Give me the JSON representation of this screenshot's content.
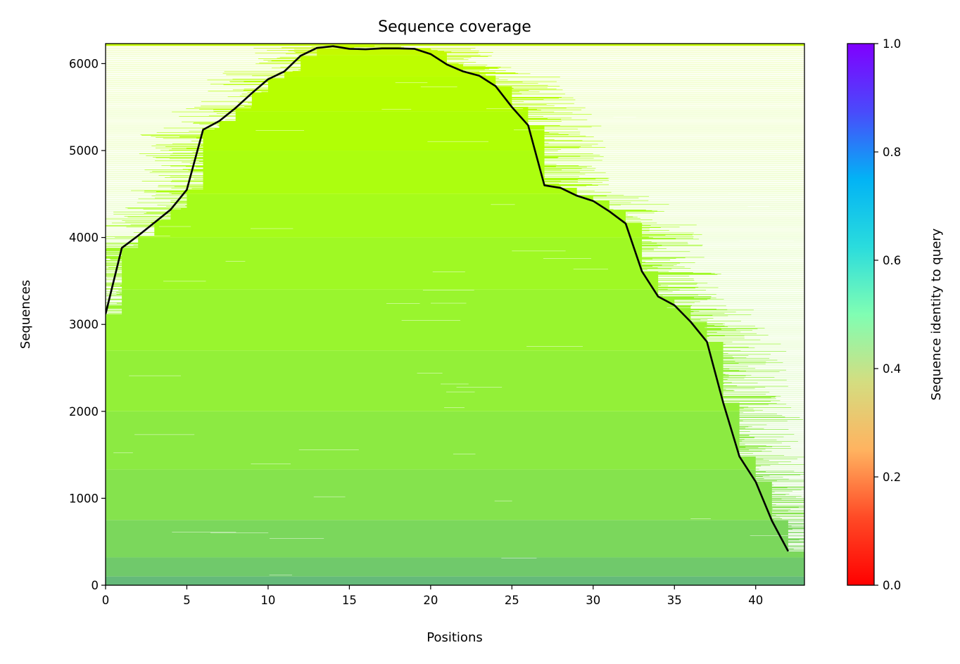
{
  "chart_data": {
    "type": "heatmap",
    "title": "Sequence coverage",
    "xlabel": "Positions",
    "ylabel": "Sequences",
    "xlim": [
      0,
      43
    ],
    "ylim": [
      0,
      6230
    ],
    "xticks": [
      0,
      5,
      10,
      15,
      20,
      25,
      30,
      35,
      40
    ],
    "yticks": [
      0,
      1000,
      2000,
      3000,
      4000,
      5000,
      6000
    ],
    "colorbar": {
      "label": "Sequence identity to query",
      "colormap": "rainbow_r",
      "range": [
        0,
        1
      ],
      "ticks": [
        "0.0",
        "0.2",
        "0.4",
        "0.6",
        "0.8",
        "1.0"
      ]
    },
    "coverage_line": {
      "color": "#000000",
      "x": [
        0,
        1,
        2,
        3,
        4,
        5,
        6,
        7,
        8,
        9,
        10,
        11,
        12,
        13,
        14,
        15,
        16,
        17,
        18,
        19,
        20,
        21,
        22,
        23,
        24,
        25,
        26,
        27,
        28,
        29,
        30,
        31,
        32,
        33,
        34,
        35,
        36,
        37,
        38,
        39,
        40,
        41,
        42
      ],
      "y": [
        3120,
        3880,
        4020,
        4170,
        4320,
        4550,
        5240,
        5340,
        5490,
        5660,
        5820,
        5910,
        6090,
        6180,
        6200,
        6170,
        6165,
        6175,
        6175,
        6170,
        6110,
        5990,
        5910,
        5860,
        5740,
        5500,
        5290,
        4600,
        4570,
        4480,
        4420,
        4300,
        4160,
        3610,
        3320,
        3220,
        3030,
        2800,
        2100,
        1480,
        1190,
        740,
        390
      ]
    },
    "identity_bands": [
      {
        "y0": 0,
        "y1": 100,
        "identity": 0.26
      },
      {
        "y0": 100,
        "y1": 320,
        "identity": 0.29
      },
      {
        "y0": 320,
        "y1": 750,
        "identity": 0.32
      },
      {
        "y0": 750,
        "y1": 1330,
        "identity": 0.35
      },
      {
        "y0": 1330,
        "y1": 2000,
        "identity": 0.37
      },
      {
        "y0": 2000,
        "y1": 2700,
        "identity": 0.39
      },
      {
        "y0": 2700,
        "y1": 3400,
        "identity": 0.41
      },
      {
        "y0": 3400,
        "y1": 4000,
        "identity": 0.43
      },
      {
        "y0": 4000,
        "y1": 4500,
        "identity": 0.45
      },
      {
        "y0": 4500,
        "y1": 5000,
        "identity": 0.47
      },
      {
        "y0": 5000,
        "y1": 5450,
        "identity": 0.49
      },
      {
        "y0": 5450,
        "y1": 5850,
        "identity": 0.51
      },
      {
        "y0": 5850,
        "y1": 6100,
        "identity": 0.53
      },
      {
        "y0": 6100,
        "y1": 6230,
        "identity": 0.56
      }
    ]
  }
}
